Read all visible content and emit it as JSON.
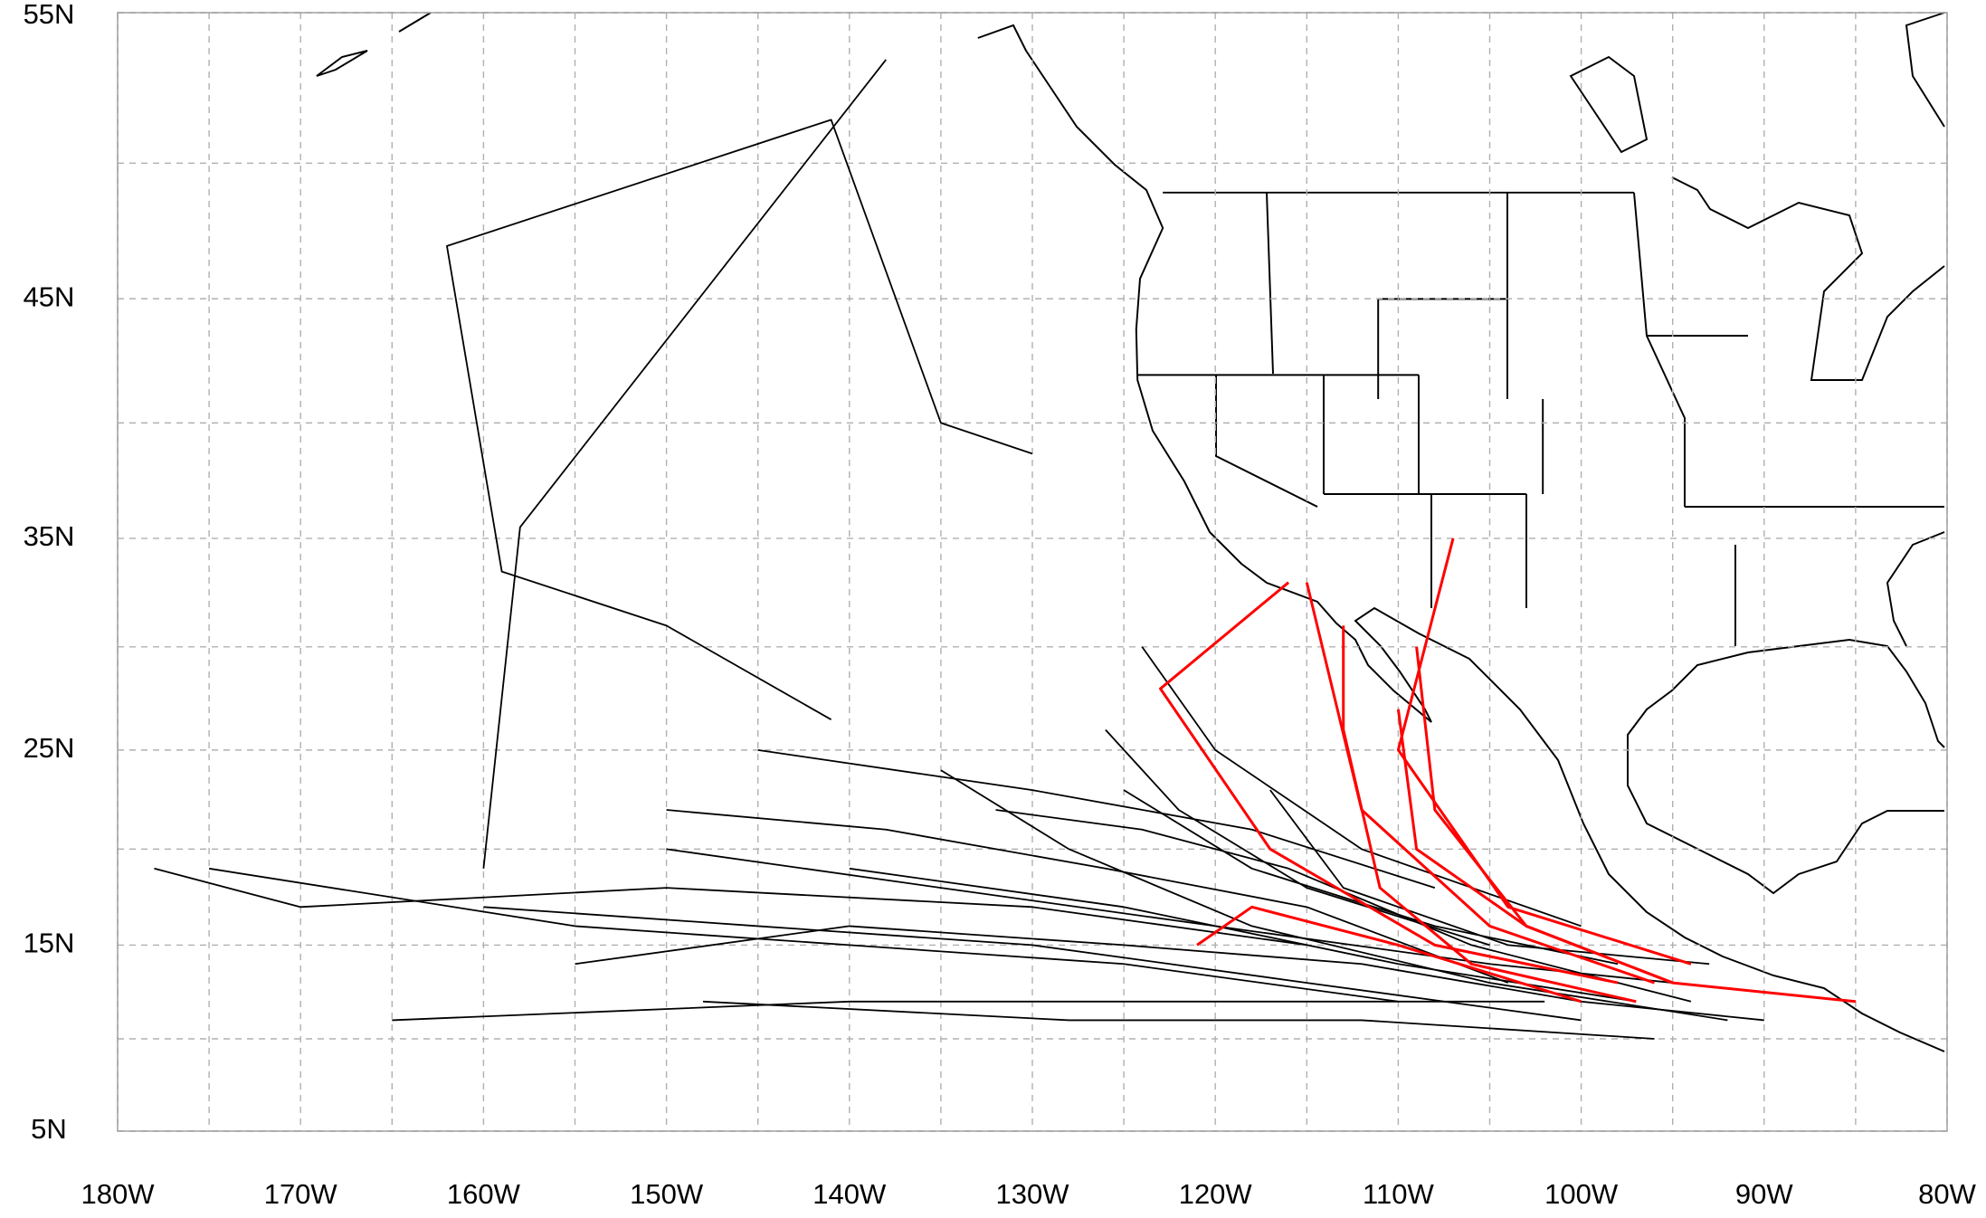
{
  "chart_data": {
    "type": "track-map",
    "projection": "mercator",
    "xlim": [
      -180,
      -80
    ],
    "ylim": [
      5,
      55
    ],
    "xticks": [
      {
        "value": -180,
        "label": "180W"
      },
      {
        "value": -170,
        "label": "170W"
      },
      {
        "value": -160,
        "label": "160W"
      },
      {
        "value": -150,
        "label": "150W"
      },
      {
        "value": -140,
        "label": "140W"
      },
      {
        "value": -130,
        "label": "130W"
      },
      {
        "value": -120,
        "label": "120W"
      },
      {
        "value": -110,
        "label": "110W"
      },
      {
        "value": -100,
        "label": "100W"
      },
      {
        "value": -90,
        "label": "90W"
      },
      {
        "value": -80,
        "label": "80W"
      }
    ],
    "yticks": [
      {
        "value": 5,
        "label": "5N"
      },
      {
        "value": 15,
        "label": "15N"
      },
      {
        "value": 25,
        "label": "25N"
      },
      {
        "value": 35,
        "label": "35N"
      },
      {
        "value": 45,
        "label": "45N"
      },
      {
        "value": 55,
        "label": "55N"
      }
    ],
    "grid": true,
    "grid_interval": 5,
    "tracks": [
      {
        "color": "#000000",
        "lon": [
          -95,
          -105,
          -120,
          -135,
          -150
        ],
        "lat": [
          13,
          14,
          16,
          18,
          20
        ]
      },
      {
        "color": "#000000",
        "lon": [
          -97,
          -110,
          -125,
          -140
        ],
        "lat": [
          12,
          14,
          17,
          19
        ]
      },
      {
        "color": "#000000",
        "lon": [
          -100,
          -115,
          -130,
          -145,
          -160
        ],
        "lat": [
          11,
          13,
          15,
          16,
          17
        ]
      },
      {
        "color": "#000000",
        "lon": [
          -92,
          -105,
          -118,
          -128,
          -135
        ],
        "lat": [
          11,
          13,
          16,
          20,
          24
        ]
      },
      {
        "color": "#000000",
        "lon": [
          -98,
          -108,
          -118,
          -125
        ],
        "lat": [
          14,
          16,
          19,
          23
        ]
      },
      {
        "color": "#000000",
        "lon": [
          -102,
          -120,
          -140,
          -165
        ],
        "lat": [
          12,
          12,
          12,
          11
        ]
      },
      {
        "color": "#000000",
        "lon": [
          -105,
          -115,
          -122,
          -126
        ],
        "lat": [
          15,
          18,
          22,
          26
        ]
      },
      {
        "color": "#000000",
        "lon": [
          -110,
          -125,
          -140,
          -155,
          -175
        ],
        "lat": [
          12,
          14,
          15,
          16,
          19
        ]
      },
      {
        "color": "#000000",
        "lon": [
          -130,
          -135,
          -141,
          -162,
          -159,
          -150,
          -141
        ],
        "lat": [
          38.7,
          40,
          51.5,
          47,
          33.5,
          31,
          26.5
        ]
      },
      {
        "color": "#000000",
        "lon": [
          -138,
          -158,
          -160
        ],
        "lat": [
          53.5,
          35.5,
          19
        ]
      },
      {
        "color": "#000000",
        "lon": [
          -93,
          -104,
          -113,
          -117
        ],
        "lat": [
          14,
          15,
          18,
          23
        ]
      },
      {
        "color": "#000000",
        "lon": [
          -96,
          -112,
          -128,
          -148
        ],
        "lat": [
          10,
          11,
          11,
          12
        ]
      },
      {
        "color": "#000000",
        "lon": [
          -100,
          -112,
          -120,
          -124
        ],
        "lat": [
          16,
          20,
          25,
          30
        ]
      },
      {
        "color": "#000000",
        "lon": [
          -108,
          -118,
          -130,
          -145
        ],
        "lat": [
          18,
          21,
          23,
          25
        ]
      },
      {
        "color": "#000000",
        "lon": [
          -115,
          -130,
          -150,
          -170,
          -178
        ],
        "lat": [
          15,
          17,
          18,
          17,
          19
        ]
      },
      {
        "color": "#000000",
        "lon": [
          -104,
          -115,
          -126,
          -138,
          -150
        ],
        "lat": [
          13,
          17,
          19,
          21,
          22
        ]
      },
      {
        "color": "#000000",
        "lon": [
          -90,
          -100,
          -112,
          -125,
          -140,
          -155
        ],
        "lat": [
          11,
          12,
          14,
          15,
          16,
          14
        ]
      },
      {
        "color": "#000000",
        "lon": [
          -94,
          -106,
          -116,
          -124,
          -132
        ],
        "lat": [
          12,
          15,
          19,
          21,
          22
        ]
      },
      {
        "color": "#ff0000",
        "lon": [
          -96,
          -105,
          -112,
          -115
        ],
        "lat": [
          13,
          16,
          22,
          33
        ]
      },
      {
        "color": "#ff0000",
        "lon": [
          -94,
          -104,
          -110,
          -107
        ],
        "lat": [
          14,
          17,
          25,
          35
        ]
      },
      {
        "color": "#ff0000",
        "lon": [
          -98,
          -108,
          -117,
          -123,
          -116
        ],
        "lat": [
          13,
          15,
          20,
          28,
          33
        ]
      },
      {
        "color": "#ff0000",
        "lon": [
          -95,
          -103,
          -108,
          -109
        ],
        "lat": [
          13,
          16,
          22,
          30
        ]
      },
      {
        "color": "#ff0000",
        "lon": [
          -97,
          -106,
          -111,
          -113,
          -113
        ],
        "lat": [
          12,
          14,
          18,
          26,
          31
        ]
      },
      {
        "color": "#ff0000",
        "lon": [
          -85,
          -95,
          -103,
          -109,
          -110
        ],
        "lat": [
          12,
          13,
          16,
          20,
          27
        ]
      },
      {
        "color": "#ff0000",
        "lon": [
          -100,
          -110,
          -118,
          -121
        ],
        "lat": [
          12,
          15,
          17,
          15
        ]
      }
    ]
  }
}
